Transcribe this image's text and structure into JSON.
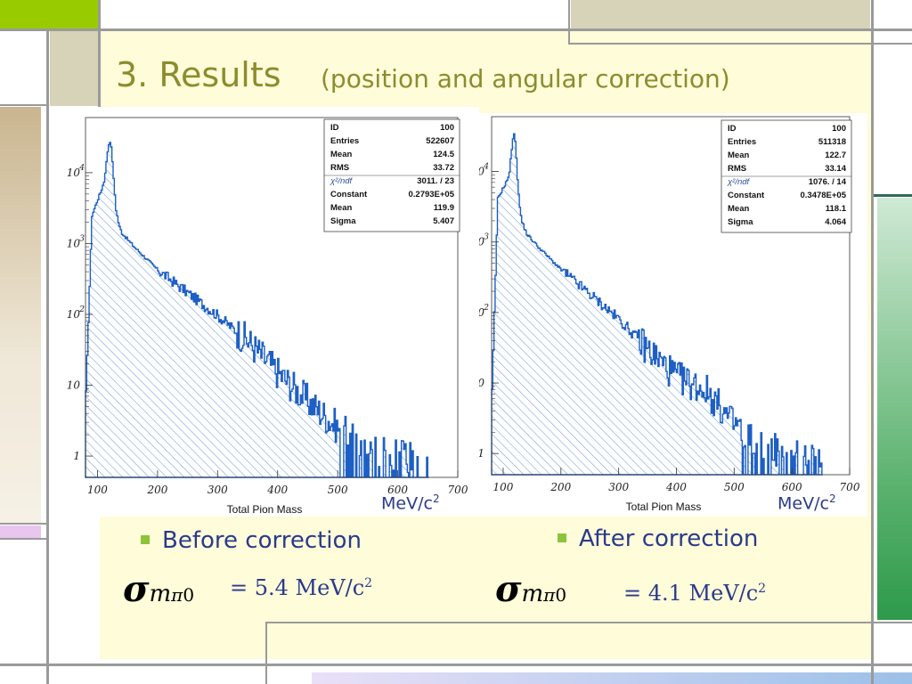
{
  "slide": {
    "title": "3. Results",
    "subtitle": "(position and angular correction)"
  },
  "panels": [
    {
      "stats": [
        {
          "label": "ID",
          "value": "100"
        },
        {
          "label": "Entries",
          "value": "522607"
        },
        {
          "label": "Mean",
          "value": "124.5"
        },
        {
          "label": "RMS",
          "value": "33.72"
        },
        {
          "label": "χ²/ndf",
          "value": "3011.   /   23"
        },
        {
          "label": "Constant",
          "value": "0.2793E+05"
        },
        {
          "label": "Mean",
          "value": "119.9"
        },
        {
          "label": "Sigma",
          "value": "5.407"
        }
      ],
      "unit_main": "MeV/c",
      "unit_exp": "2",
      "bullet": "Before correction",
      "sigma_symbol": "σ",
      "sigma_m": "m",
      "sigma_pi": "π",
      "sigma_zero": "0",
      "result_text": "=  5.4 MeV/c",
      "result_exp": "2"
    },
    {
      "stats": [
        {
          "label": "ID",
          "value": "100"
        },
        {
          "label": "Entries",
          "value": "511318"
        },
        {
          "label": "Mean",
          "value": "122.7"
        },
        {
          "label": "RMS",
          "value": "33.14"
        },
        {
          "label": "χ²/ndf",
          "value": "1076.   /   14"
        },
        {
          "label": "Constant",
          "value": "0.3478E+05"
        },
        {
          "label": "Mean",
          "value": "118.1"
        },
        {
          "label": "Sigma",
          "value": "4.064"
        }
      ],
      "unit_main": "MeV/c",
      "unit_exp": "2",
      "bullet": "After correction",
      "sigma_symbol": "σ",
      "sigma_m": "m",
      "sigma_pi": "π",
      "sigma_zero": "0",
      "result_text": "=  4.1 MeV/c",
      "result_exp": "2"
    }
  ],
  "colors": {
    "histogram": "#1d5fc4",
    "hatch": "#6f9fd8",
    "text_blue": "#2a3a8c",
    "title": "#8c8c2e",
    "bullet": "#8cc43a"
  },
  "chart_data": [
    {
      "type": "area",
      "xlabel": "Total Pion Mass",
      "xticks": [
        100,
        200,
        300,
        400,
        500,
        600,
        700
      ],
      "yticks": [
        "1",
        "10",
        "10 2",
        "10 3",
        "10 4"
      ],
      "y_scale": "log",
      "xlim": [
        80,
        700
      ],
      "ylim": [
        0.5,
        60000
      ],
      "peak": {
        "x": 119.9,
        "y": 27930,
        "sigma": 5.407
      },
      "x": [
        80,
        90,
        100,
        105,
        110,
        114,
        117,
        120,
        123,
        126,
        130,
        135,
        140,
        160,
        200,
        250,
        300,
        350,
        400,
        450,
        500,
        550,
        600,
        650
      ],
      "y": [
        8,
        2500,
        4300,
        5500,
        7500,
        14000,
        24000,
        28000,
        20000,
        8000,
        3000,
        1800,
        1400,
        900,
        420,
        200,
        95,
        42,
        15,
        6,
        2.5,
        1.3,
        1,
        1
      ]
    },
    {
      "type": "area",
      "xlabel": "Total Pion Mass",
      "xticks": [
        100,
        200,
        300,
        400,
        500,
        600,
        700
      ],
      "yticks": [
        "1",
        "0",
        "0 2",
        "0 3",
        "0 4"
      ],
      "y_scale": "log",
      "xlim": [
        80,
        700
      ],
      "ylim": [
        0.5,
        60000
      ],
      "peak": {
        "x": 118.1,
        "y": 34780,
        "sigma": 4.064
      },
      "x": [
        80,
        90,
        100,
        105,
        110,
        113,
        116,
        118,
        121,
        124,
        128,
        132,
        140,
        160,
        200,
        250,
        300,
        350,
        400,
        450,
        500,
        550,
        600,
        650
      ],
      "y": [
        8,
        4200,
        6000,
        7200,
        9500,
        18000,
        30000,
        35000,
        22000,
        8000,
        3000,
        1900,
        1300,
        850,
        400,
        180,
        80,
        30,
        12,
        8,
        2.5,
        1.2,
        1,
        1
      ]
    }
  ]
}
